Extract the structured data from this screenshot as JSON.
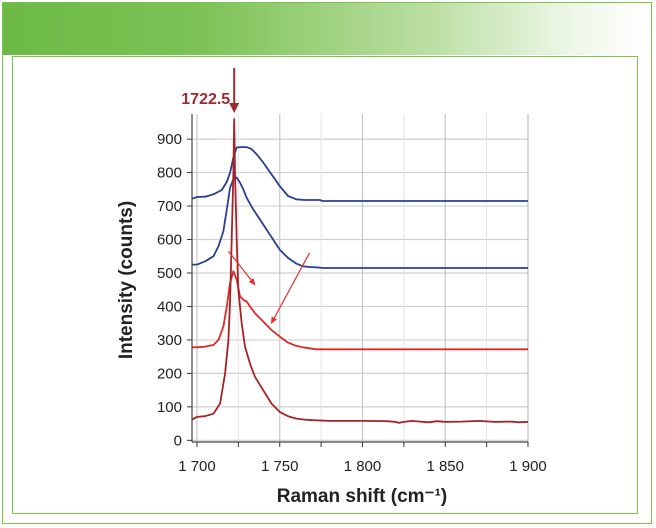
{
  "chart_data": {
    "type": "line",
    "title": "",
    "xlabel": "Raman shift (cm⁻¹)",
    "ylabel": "Intensity (counts)",
    "xlim": [
      1697,
      1900
    ],
    "ylim": [
      -5,
      975
    ],
    "xticks": [
      1700,
      1750,
      1800,
      1850,
      1900
    ],
    "xtick_labels": [
      "1 700",
      "1 750",
      "1 800",
      "1 850",
      "1 900"
    ],
    "yticks": [
      0,
      100,
      200,
      300,
      400,
      500,
      600,
      700,
      800,
      900
    ],
    "ytick_labels": [
      "0",
      "100",
      "200",
      "300",
      "400",
      "500",
      "600",
      "700",
      "800",
      "900"
    ],
    "grid": true,
    "annotation": {
      "label": "1722.5",
      "x": 1722.5
    },
    "arrow_annotations": [
      {
        "from": [
          1719,
          565
        ],
        "to": [
          1735,
          465
        ]
      },
      {
        "from": [
          1768,
          560
        ],
        "to": [
          1745,
          350
        ]
      }
    ],
    "series": [
      {
        "name": "top-blue",
        "color": "#2a3f8f",
        "x": [
          1697,
          1700,
          1705,
          1710,
          1715,
          1718,
          1720,
          1722,
          1724,
          1726,
          1728,
          1730,
          1733,
          1736,
          1740,
          1745,
          1750,
          1755,
          1760,
          1765,
          1770,
          1774,
          1776,
          1800,
          1850,
          1900
        ],
        "y": [
          722,
          727,
          728,
          735,
          748,
          772,
          800,
          845,
          875,
          876,
          876,
          876,
          870,
          855,
          830,
          795,
          760,
          730,
          720,
          718,
          718,
          718,
          715,
          715,
          715,
          715
        ]
      },
      {
        "name": "upper-blue",
        "color": "#2a3f8f",
        "x": [
          1697,
          1700,
          1705,
          1710,
          1713,
          1716,
          1718,
          1720,
          1722,
          1724,
          1726,
          1728,
          1730,
          1734,
          1738,
          1742,
          1746,
          1750,
          1755,
          1760,
          1764,
          1768,
          1772,
          1776,
          1780,
          1800,
          1850,
          1900
        ],
        "y": [
          525,
          525,
          535,
          550,
          580,
          625,
          690,
          755,
          780,
          785,
          770,
          750,
          725,
          690,
          660,
          630,
          600,
          570,
          545,
          528,
          520,
          518,
          517,
          515,
          515,
          515,
          515,
          515
        ]
      },
      {
        "name": "middle-red",
        "color": "#d82b2b",
        "x": [
          1697,
          1700,
          1705,
          1710,
          1713,
          1716,
          1718,
          1720,
          1722,
          1724,
          1726,
          1728,
          1730,
          1732,
          1735,
          1740,
          1745,
          1750,
          1755,
          1760,
          1764,
          1768,
          1772,
          1776,
          1780,
          1800,
          1850,
          1900
        ],
        "y": [
          278,
          278,
          280,
          285,
          300,
          340,
          400,
          470,
          505,
          480,
          430,
          420,
          415,
          400,
          380,
          355,
          330,
          310,
          292,
          282,
          278,
          275,
          272,
          272,
          272,
          272,
          272,
          272
        ]
      },
      {
        "name": "bottom-red",
        "color": "#a52228",
        "x": [
          1697,
          1700,
          1705,
          1710,
          1714,
          1717,
          1719,
          1720,
          1721,
          1722,
          1722.5,
          1723,
          1724,
          1725,
          1727,
          1729,
          1732,
          1735,
          1740,
          1745,
          1750,
          1755,
          1760,
          1765,
          1770,
          1780,
          1800,
          1815,
          1820,
          1822,
          1825,
          1830,
          1835,
          1840,
          1845,
          1850,
          1860,
          1870,
          1880,
          1890,
          1895,
          1900
        ],
        "y": [
          62,
          70,
          72,
          80,
          110,
          200,
          300,
          420,
          600,
          800,
          960,
          800,
          600,
          450,
          350,
          280,
          230,
          190,
          150,
          110,
          85,
          72,
          65,
          62,
          60,
          58,
          58,
          57,
          55,
          52,
          55,
          58,
          56,
          54,
          57,
          55,
          56,
          58,
          55,
          56,
          54,
          55
        ]
      }
    ]
  }
}
